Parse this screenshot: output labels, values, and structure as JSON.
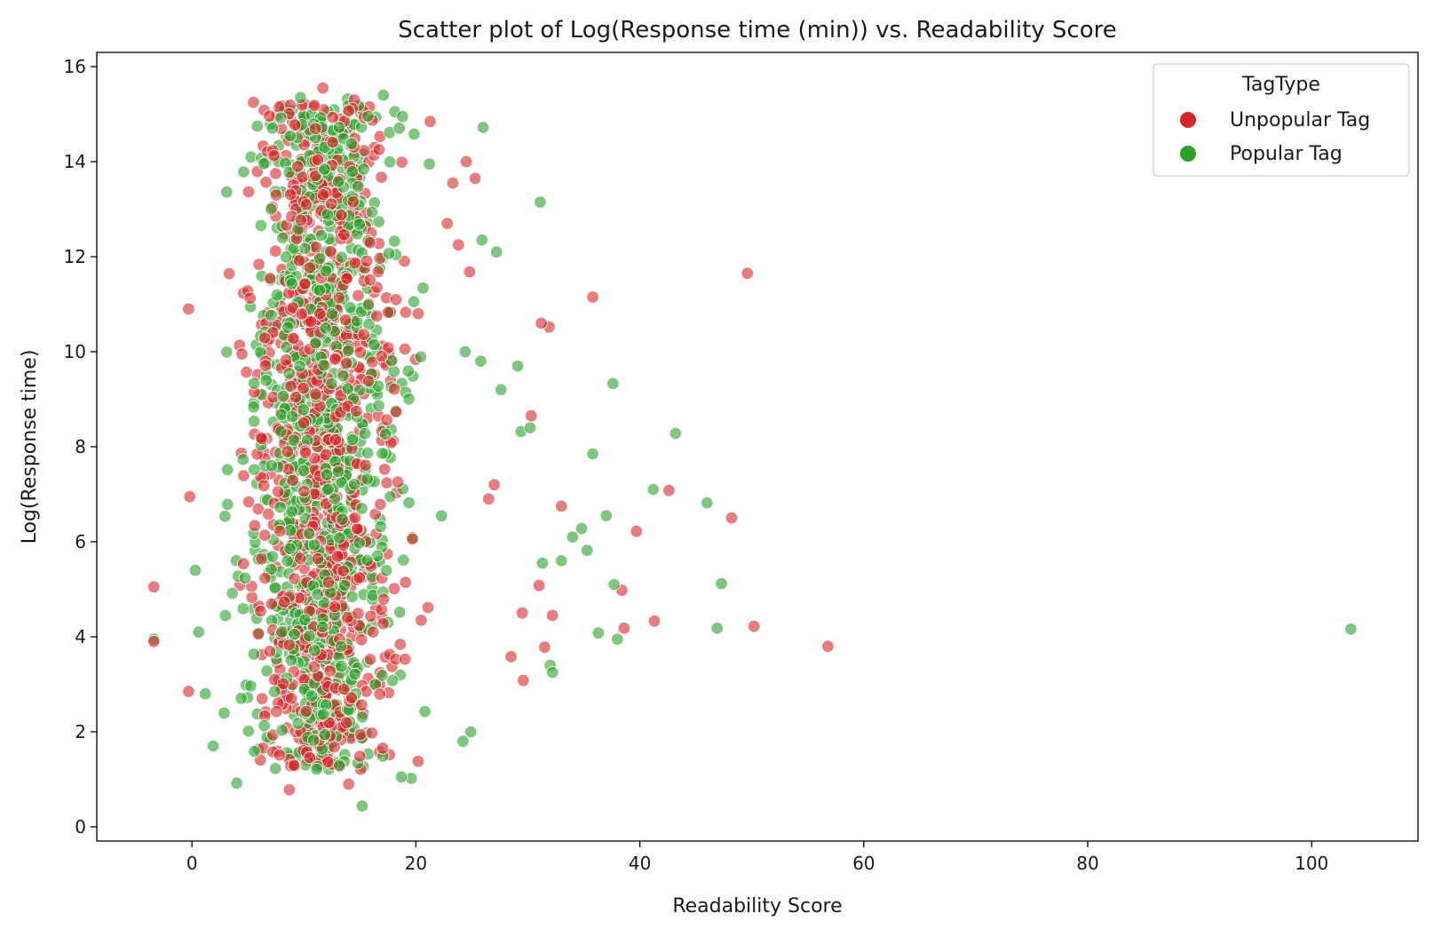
{
  "chart_data": {
    "type": "scatter",
    "title": "Scatter plot of Log(Response time (min)) vs. Readability Score",
    "xlabel": "Readability Score",
    "ylabel": "Log(Response time)",
    "xlim": [
      -8.5,
      109.5
    ],
    "ylim": [
      -0.3,
      16.3
    ],
    "xticks": [
      0,
      20,
      40,
      60,
      80,
      100
    ],
    "yticks": [
      0,
      2,
      4,
      6,
      8,
      10,
      12,
      14,
      16
    ],
    "grid": false,
    "legend": {
      "title": "TagType",
      "position": "top-right"
    },
    "series": [
      {
        "name": "Unpopular Tag",
        "color": "#d62728",
        "points": [
          [
            -3.4,
            5.05
          ],
          [
            -3.4,
            3.9
          ],
          [
            -0.3,
            10.9
          ],
          [
            -0.2,
            6.95
          ],
          [
            -0.3,
            2.85
          ],
          [
            35.8,
            11.15
          ],
          [
            31.2,
            10.6
          ],
          [
            31.9,
            10.52
          ],
          [
            49.6,
            11.65
          ],
          [
            33.0,
            6.75
          ],
          [
            39.7,
            6.22
          ],
          [
            42.6,
            7.08
          ],
          [
            48.2,
            6.5
          ],
          [
            38.4,
            4.98
          ],
          [
            38.6,
            4.18
          ],
          [
            41.3,
            4.33
          ],
          [
            50.2,
            4.22
          ],
          [
            56.8,
            3.8
          ],
          [
            28.5,
            3.58
          ],
          [
            29.6,
            3.08
          ],
          [
            31.5,
            3.78
          ],
          [
            25.3,
            13.65
          ],
          [
            24.5,
            14.0
          ],
          [
            23.3,
            13.55
          ],
          [
            24.8,
            11.68
          ],
          [
            22.8,
            12.7
          ],
          [
            23.8,
            12.25
          ],
          [
            29.5,
            4.5
          ],
          [
            31.0,
            5.08
          ],
          [
            32.2,
            4.45
          ],
          [
            27.0,
            7.2
          ],
          [
            30.3,
            8.65
          ],
          [
            26.5,
            6.9
          ],
          [
            11.7,
            15.55
          ],
          [
            7.8,
            15.15
          ],
          [
            5.5,
            15.25
          ],
          [
            14.5,
            15.3
          ],
          [
            8.7,
            0.78
          ],
          [
            14.0,
            0.9
          ],
          [
            20.2,
            1.38
          ],
          [
            10.1,
            15.2
          ],
          [
            13.2,
            14.9
          ],
          [
            16.3,
            14.3
          ]
        ],
        "cluster": {
          "x": [
            3.5,
            19.5
          ],
          "y": [
            1.2,
            15.2
          ],
          "count": 900,
          "seed": 7
        }
      },
      {
        "name": "Popular Tag",
        "color": "#2ca02c",
        "points": [
          [
            -3.4,
            3.95
          ],
          [
            0.3,
            5.4
          ],
          [
            0.6,
            4.1
          ],
          [
            1.2,
            2.8
          ],
          [
            1.9,
            1.7
          ],
          [
            4.0,
            0.92
          ],
          [
            15.2,
            0.44
          ],
          [
            19.6,
            1.02
          ],
          [
            18.7,
            1.05
          ],
          [
            24.9,
            2.0
          ],
          [
            31.1,
            13.15
          ],
          [
            26.0,
            14.72
          ],
          [
            27.2,
            12.1
          ],
          [
            25.9,
            12.35
          ],
          [
            24.4,
            10.0
          ],
          [
            37.6,
            9.33
          ],
          [
            43.2,
            8.28
          ],
          [
            35.8,
            7.85
          ],
          [
            41.2,
            7.1
          ],
          [
            46.0,
            6.82
          ],
          [
            37.0,
            6.55
          ],
          [
            37.7,
            5.1
          ],
          [
            47.3,
            5.12
          ],
          [
            36.3,
            4.08
          ],
          [
            38.0,
            3.95
          ],
          [
            46.9,
            4.18
          ],
          [
            103.5,
            4.16
          ],
          [
            34.0,
            6.1
          ],
          [
            35.3,
            5.82
          ],
          [
            33.0,
            5.6
          ],
          [
            32.0,
            3.4
          ],
          [
            32.2,
            3.25
          ],
          [
            29.1,
            9.7
          ],
          [
            29.4,
            8.32
          ],
          [
            30.2,
            8.4
          ],
          [
            27.6,
            9.2
          ],
          [
            25.8,
            9.8
          ],
          [
            24.2,
            1.8
          ],
          [
            17.1,
            15.4
          ],
          [
            9.7,
            15.35
          ],
          [
            13.9,
            15.32
          ],
          [
            18.8,
            14.95
          ],
          [
            21.2,
            13.95
          ],
          [
            31.3,
            5.55
          ],
          [
            34.8,
            6.28
          ]
        ],
        "cluster": {
          "x": [
            3.5,
            19.5
          ],
          "y": [
            1.2,
            15.2
          ],
          "count": 900,
          "seed": 13
        }
      }
    ]
  }
}
